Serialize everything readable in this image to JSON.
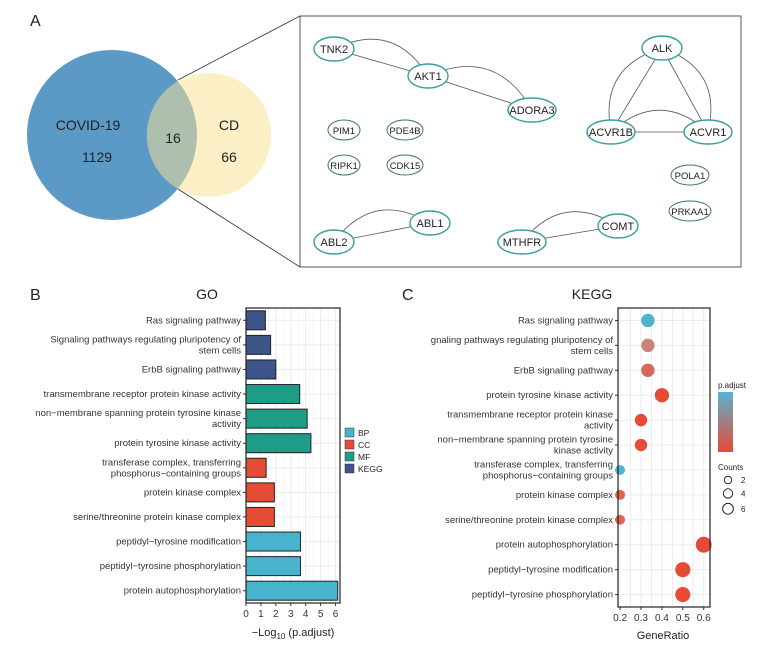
{
  "panel_labels": {
    "a": "A",
    "b": "B",
    "c": "C"
  },
  "venn": {
    "sets": [
      {
        "name": "COVID-19",
        "unique": "1129",
        "color": "#5b9ac6"
      },
      {
        "name": "CD",
        "unique": "66",
        "color": "#fbefc5"
      }
    ],
    "intersection": "16",
    "intersection_color": "#aebfae"
  },
  "network": {
    "nodes": [
      "TNK2",
      "AKT1",
      "ADORA3",
      "PIM1",
      "PDE4B",
      "RIPK1",
      "CDK15",
      "ABL2",
      "ABL1",
      "MTHFR",
      "COMT",
      "ALK",
      "ACVR1B",
      "ACVR1",
      "POLA1",
      "PRKAA1"
    ],
    "edges": [
      [
        "TNK2",
        "AKT1"
      ],
      [
        "AKT1",
        "ADORA3"
      ],
      [
        "ALK",
        "ACVR1B"
      ],
      [
        "ALK",
        "ACVR1"
      ],
      [
        "ACVR1B",
        "ACVR1"
      ],
      [
        "ABL2",
        "ABL1"
      ],
      [
        "MTHFR",
        "COMT"
      ]
    ]
  },
  "chart_data": [
    {
      "type": "bar",
      "orientation": "horizontal",
      "title": "GO",
      "xlabel": "−Log10 (p.adjust)",
      "xlim": [
        0,
        6.3
      ],
      "xticks": [
        "0",
        "1",
        "2",
        "3",
        "4",
        "5",
        "6"
      ],
      "grid": true,
      "legend_placement": "right",
      "legend": [
        {
          "name": "BP",
          "color": "#47b3cc"
        },
        {
          "name": "CC",
          "color": "#e64b35"
        },
        {
          "name": "MF",
          "color": "#1f9c86"
        },
        {
          "name": "KEGG",
          "color": "#3c5488"
        }
      ],
      "categories": [
        "Ras signaling pathway",
        "Signaling pathways regulating pluripotency of stem cells",
        "ErbB signaling pathway",
        "transmembrane receptor protein kinase activity",
        "non−membrane spanning protein tyrosine kinase activity",
        "protein tyrosine kinase activity",
        "transferase complex, transferring phosphorus−containing groups",
        "protein kinase complex",
        "serine/threonine protein kinase complex",
        "peptidyl−tyrosine modification",
        "peptidyl−tyrosine phosphorylation",
        "protein autophosphorylation"
      ],
      "groups": [
        "KEGG",
        "KEGG",
        "KEGG",
        "MF",
        "MF",
        "MF",
        "CC",
        "CC",
        "CC",
        "BP",
        "BP",
        "BP"
      ],
      "values": [
        1.3,
        1.65,
        2.0,
        3.6,
        4.1,
        4.35,
        1.35,
        1.9,
        1.9,
        3.65,
        3.65,
        6.15
      ]
    },
    {
      "type": "scatter",
      "title": "KEGG",
      "xlabel": "GeneRatio",
      "xlim": [
        0.19,
        0.63
      ],
      "xticks": [
        "0.2",
        "0.3",
        "0.4",
        "0.5",
        "0.6"
      ],
      "grid": true,
      "legend_placement": "right",
      "color_legend_title": "p.adjust",
      "color_scale": [
        "#56b4d0",
        "#e64b35"
      ],
      "size_legend_title": "Counts",
      "size_legend": [
        2,
        4,
        6
      ],
      "categories": [
        "Ras signaling pathway",
        "gnaling pathways regulating pluripotency of stem cells",
        "ErbB signaling pathway",
        "protein tyrosine kinase activity",
        "transmembrane receptor protein kinase activity",
        "non−membrane spanning protein tyrosine kinase activity",
        "transferase complex, transferring phosphorus−containing groups",
        "protein kinase complex",
        "serine/threonine protein kinase complex",
        "protein autophosphorylation",
        "peptidyl−tyrosine modification",
        "peptidyl−tyrosine phosphorylation"
      ],
      "x": [
        0.333,
        0.333,
        0.333,
        0.4,
        0.3,
        0.3,
        0.2,
        0.2,
        0.2,
        0.6,
        0.5,
        0.5
      ],
      "counts": [
        5,
        5,
        5,
        6,
        4,
        4,
        2,
        2,
        2,
        8,
        7,
        7
      ],
      "colors": [
        "#4fb3cf",
        "#c9837a",
        "#d4695a",
        "#e64b35",
        "#e64b35",
        "#e64b35",
        "#56b4d0",
        "#dd6552",
        "#dd6552",
        "#e64b35",
        "#e64b35",
        "#e64b35"
      ]
    }
  ]
}
